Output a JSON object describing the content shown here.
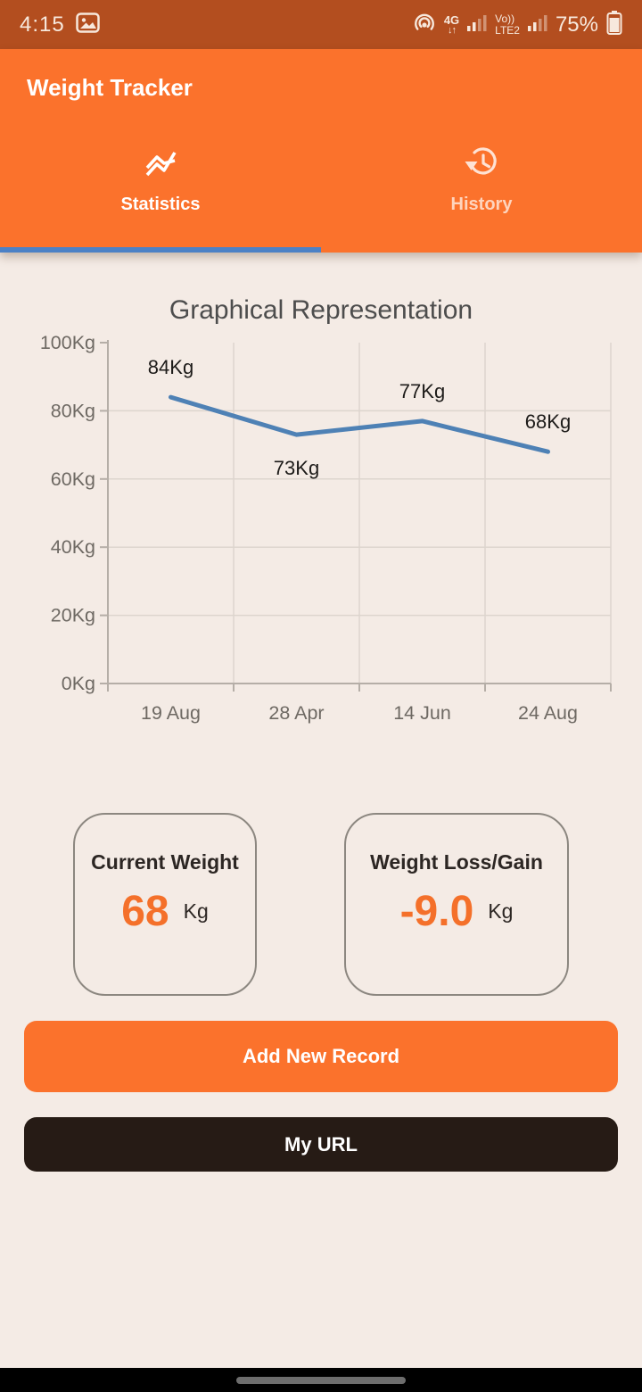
{
  "status_bar": {
    "time": "4:15",
    "network_type": "4G",
    "data_arrows": "↓↑",
    "volte_line1": "Vo))",
    "volte_line2": "LTE2",
    "battery": "75%"
  },
  "header": {
    "title": "Weight Tracker",
    "tabs": [
      {
        "label": "Statistics",
        "active": true
      },
      {
        "label": "History",
        "active": false
      }
    ]
  },
  "chart_data": {
    "type": "line",
    "title": "Graphical Representation",
    "categories": [
      "19 Aug",
      "28 Apr",
      "14 Jun",
      "24 Aug"
    ],
    "values": [
      84,
      73,
      77,
      68
    ],
    "point_labels": [
      "84Kg",
      "73Kg",
      "77Kg",
      "68Kg"
    ],
    "label_positions": [
      "above",
      "below",
      "above",
      "above"
    ],
    "yticks": [
      "100Kg",
      "80Kg",
      "60Kg",
      "40Kg",
      "20Kg",
      "0Kg"
    ],
    "ylim": [
      0,
      100
    ],
    "ytick_step": 20,
    "xlabel": "",
    "ylabel": "",
    "grid": true,
    "legend": false,
    "line_color": "#4e81b5",
    "grid_color": "#ddd5ce",
    "axis_color": "#b5aea7"
  },
  "cards": [
    {
      "title": "Current Weight",
      "value": "68",
      "unit": "Kg"
    },
    {
      "title": "Weight Loss/Gain",
      "value": "-9.0",
      "unit": "Kg"
    }
  ],
  "buttons": {
    "add_record": "Add New Record",
    "my_url": "My URL"
  },
  "colors": {
    "header_orange": "#fb722c",
    "status_bar_orange": "#b34e1f",
    "tab_indicator_blue": "#4c81c6",
    "value_orange": "#f4702a",
    "dark_button": "#261b15",
    "page_background": "#f4ebe5"
  }
}
